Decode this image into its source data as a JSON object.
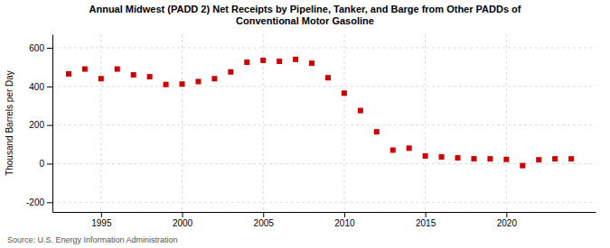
{
  "chart_data": {
    "type": "scatter",
    "title": "Annual Midwest (PADD 2) Net Receipts by Pipeline, Tanker, and Barge from Other PADDs of\nConventional Motor Gasoline",
    "ylabel": "Thousand Barrels per Day",
    "annotations": [
      "Source: U.S. Energy Information Administration"
    ],
    "x": [
      1993,
      1994,
      1995,
      1996,
      1997,
      1998,
      1999,
      2000,
      2001,
      2002,
      2003,
      2004,
      2005,
      2006,
      2007,
      2008,
      2009,
      2010,
      2011,
      2012,
      2013,
      2014,
      2015,
      2016,
      2017,
      2018,
      2019,
      2020,
      2021,
      2022,
      2023,
      2024
    ],
    "values": [
      465,
      490,
      440,
      490,
      460,
      450,
      410,
      412,
      425,
      440,
      475,
      525,
      535,
      530,
      540,
      520,
      445,
      365,
      275,
      165,
      70,
      80,
      40,
      35,
      30,
      25,
      25,
      22,
      -10,
      20,
      25,
      25
    ],
    "color": "#cc0000",
    "marker": "square",
    "xlim": [
      1992.0,
      2025.5
    ],
    "ylim": [
      -250,
      670
    ],
    "xticks": [
      1995,
      2000,
      2005,
      2010,
      2015,
      2020
    ],
    "yticks": [
      -200,
      0,
      200,
      400,
      600
    ],
    "grid": true
  }
}
